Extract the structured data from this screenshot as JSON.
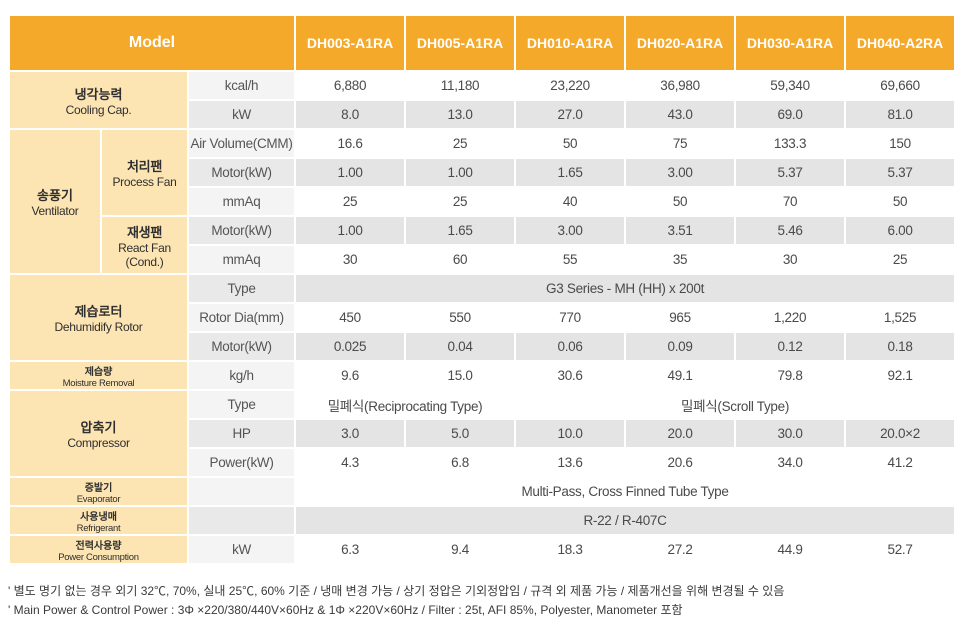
{
  "header": {
    "model_label": "Model",
    "models": [
      "DH003-A1RA",
      "DH005-A1RA",
      "DH010-A1RA",
      "DH020-A1RA",
      "DH030-A1RA",
      "DH040-A2RA"
    ]
  },
  "cooling": {
    "ko": "냉각능력",
    "en": "Cooling Cap.",
    "rows": [
      {
        "unit": "kcal/h",
        "values": [
          "6,880",
          "11,180",
          "23,220",
          "36,980",
          "59,340",
          "69,660"
        ]
      },
      {
        "unit": "kW",
        "values": [
          "8.0",
          "13.0",
          "27.0",
          "43.0",
          "69.0",
          "81.0"
        ]
      }
    ]
  },
  "ventilator": {
    "ko": "송풍기",
    "en": "Ventilator",
    "process_fan": {
      "ko": "처리팬",
      "en": "Process Fan",
      "rows": [
        {
          "unit": "Air Volume(CMM)",
          "values": [
            "16.6",
            "25",
            "50",
            "75",
            "133.3",
            "150"
          ]
        },
        {
          "unit": "Motor(kW)",
          "values": [
            "1.00",
            "1.00",
            "1.65",
            "3.00",
            "5.37",
            "5.37"
          ]
        },
        {
          "unit": "mmAq",
          "values": [
            "25",
            "25",
            "40",
            "50",
            "70",
            "50"
          ]
        }
      ]
    },
    "react_fan": {
      "ko": "재생팬",
      "en1": "React Fan",
      "en2": "(Cond.)",
      "rows": [
        {
          "unit": "Motor(kW)",
          "values": [
            "1.00",
            "1.65",
            "3.00",
            "3.51",
            "5.46",
            "6.00"
          ]
        },
        {
          "unit": "mmAq",
          "values": [
            "30",
            "60",
            "55",
            "35",
            "30",
            "25"
          ]
        }
      ]
    }
  },
  "rotor": {
    "ko": "제습로터",
    "en": "Dehumidify Rotor",
    "type_unit": "Type",
    "type_value": "G3 Series - MH (HH) x 200t",
    "rows": [
      {
        "unit": "Rotor Dia(mm)",
        "values": [
          "450",
          "550",
          "770",
          "965",
          "1,220",
          "1,525"
        ]
      },
      {
        "unit": "Motor(kW)",
        "values": [
          "0.025",
          "0.04",
          "0.06",
          "0.09",
          "0.12",
          "0.18"
        ]
      }
    ]
  },
  "moisture": {
    "ko": "제습량",
    "en": "Moisture Removal",
    "unit": "kg/h",
    "values": [
      "9.6",
      "15.0",
      "30.6",
      "49.1",
      "79.8",
      "92.1"
    ]
  },
  "compressor": {
    "ko": "압축기",
    "en": "Compressor",
    "type_unit": "Type",
    "type_recip": "밀폐식(Reciprocating Type)",
    "type_scroll": "밀폐식(Scroll Type)",
    "rows": [
      {
        "unit": "HP",
        "values": [
          "3.0",
          "5.0",
          "10.0",
          "20.0",
          "30.0",
          "20.0×2"
        ]
      },
      {
        "unit": "Power(kW)",
        "values": [
          "4.3",
          "6.8",
          "13.6",
          "20.6",
          "34.0",
          "41.2"
        ]
      }
    ]
  },
  "evaporator": {
    "ko": "증발기",
    "en": "Evaporator",
    "value": "Multi-Pass, Cross Finned Tube Type"
  },
  "refrigerant": {
    "ko": "사용냉매",
    "en": "Refrigerant",
    "value": "R-22 / R-407C"
  },
  "power": {
    "ko": "전력사용량",
    "en": "Power Consumption",
    "unit": "kW",
    "values": [
      "6.3",
      "9.4",
      "18.3",
      "27.2",
      "44.9",
      "52.7"
    ]
  },
  "notes": [
    "' 별도 명기 없는 경우 외기 32℃, 70%, 실내 25℃, 60% 기준 / 냉매 변경 가능 / 상기 정압은 기외정압임 / 규격 외 제품 가능 / 제품개선을 위해 변경될 수 있음",
    "' Main Power & Control Power : 3Φ ×220/380/440V×60Hz & 1Φ ×220V×60Hz / Filter : 25t, AFI 85%, Polyester, Manometer 포함"
  ]
}
